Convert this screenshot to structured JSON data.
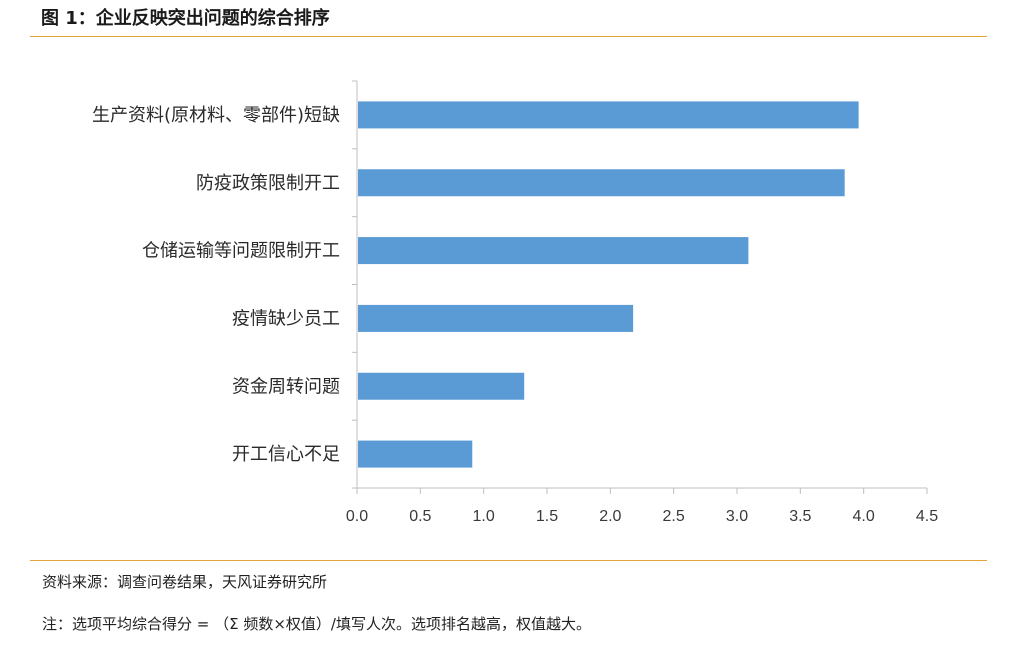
{
  "figure": {
    "title": "图 1：企业反映突出问题的综合排序",
    "source": "资料来源：调查问卷结果，天风证券研究所",
    "note": "注：选项平均综合得分 = （Σ 频数×权值）/填写人次。选项排名越高，权值越大。"
  },
  "colors": {
    "bar": "#5B9BD5",
    "rule": "#E4A43A",
    "axis": "#BFBFBF"
  },
  "chart_data": {
    "type": "bar",
    "orientation": "horizontal",
    "categories": [
      "生产资料(原材料、零部件)短缺",
      "防疫政策限制开工",
      "仓储运输等问题限制开工",
      "疫情缺少员工",
      "资金周转问题",
      "开工信心不足"
    ],
    "values": [
      3.96,
      3.85,
      3.09,
      2.18,
      1.32,
      0.91
    ],
    "xlim": [
      0,
      4.5
    ],
    "xticks": [
      "0.0",
      "0.5",
      "1.0",
      "1.5",
      "2.0",
      "2.5",
      "3.0",
      "3.5",
      "4.0",
      "4.5"
    ],
    "title": "",
    "xlabel": "",
    "ylabel": "",
    "grid": false,
    "legend": false
  }
}
